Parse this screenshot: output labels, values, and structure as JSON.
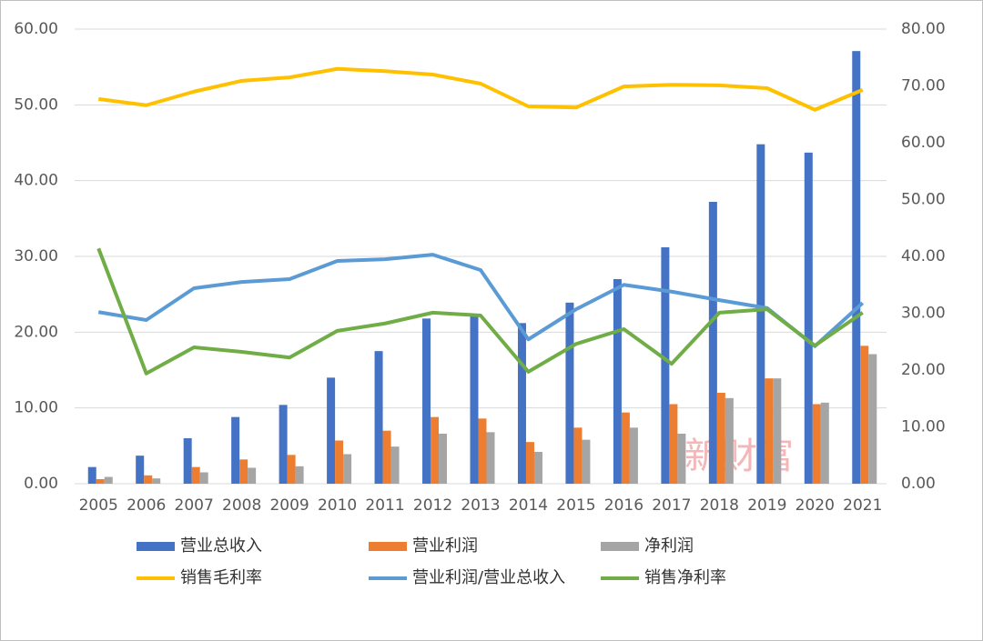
{
  "chart_data": {
    "type": "bar-line",
    "categories": [
      "2005",
      "2006",
      "2007",
      "2008",
      "2009",
      "2010",
      "2011",
      "2012",
      "2013",
      "2014",
      "2015",
      "2016",
      "2017",
      "2018",
      "2019",
      "2020",
      "2021"
    ],
    "series": [
      {
        "name": "营业总收入",
        "type": "bar",
        "color": "#4472c4",
        "values": [
          2.2,
          3.7,
          6.0,
          8.8,
          10.4,
          14.0,
          17.5,
          21.8,
          22.3,
          21.2,
          23.9,
          27.0,
          31.2,
          37.2,
          44.8,
          43.7,
          57.1
        ]
      },
      {
        "name": "营业利润",
        "type": "bar",
        "color": "#ed7d31",
        "values": [
          0.6,
          1.1,
          2.2,
          3.2,
          3.8,
          5.7,
          7.0,
          8.8,
          8.6,
          5.5,
          7.4,
          9.4,
          10.5,
          12.0,
          13.9,
          10.5,
          18.2
        ]
      },
      {
        "name": "净利润",
        "type": "bar",
        "color": "#a5a5a5",
        "values": [
          0.9,
          0.7,
          1.5,
          2.1,
          2.3,
          3.9,
          4.9,
          6.6,
          6.8,
          4.2,
          5.8,
          7.4,
          6.6,
          11.3,
          13.9,
          10.7,
          17.1
        ]
      },
      {
        "name": "销售毛利率",
        "type": "line",
        "axis": "y2",
        "color": "#ffc000",
        "values": [
          67.7,
          66.6,
          69.0,
          70.9,
          71.5,
          73.0,
          72.6,
          72.0,
          70.4,
          66.4,
          66.2,
          69.9,
          70.2,
          70.1,
          69.6,
          65.8,
          69.3
        ]
      },
      {
        "name": "营业利润/营业总收入",
        "type": "line",
        "axis": "y2",
        "color": "#5b9bd5",
        "values": [
          30.2,
          28.8,
          34.4,
          35.5,
          36.0,
          39.2,
          39.5,
          40.3,
          37.6,
          25.4,
          30.7,
          35.0,
          33.8,
          32.3,
          30.9,
          24.2,
          31.8
        ]
      },
      {
        "name": "销售净利率",
        "type": "line",
        "axis": "y2",
        "color": "#70ad47",
        "values": [
          41.4,
          19.4,
          24.0,
          23.2,
          22.2,
          26.9,
          28.2,
          30.1,
          29.6,
          19.7,
          24.6,
          27.2,
          21.1,
          30.1,
          30.7,
          24.3,
          30.1
        ]
      }
    ],
    "ylim": [
      0,
      60
    ],
    "yticks": [
      {
        "value": 0,
        "label": "0.00"
      },
      {
        "value": 10,
        "label": "10.00"
      },
      {
        "value": 20,
        "label": "20.00"
      },
      {
        "value": 30,
        "label": "30.00"
      },
      {
        "value": 40,
        "label": "40.00"
      },
      {
        "value": 50,
        "label": "50.00"
      },
      {
        "value": 60,
        "label": "60.00"
      }
    ],
    "y2lim": [
      0,
      80
    ],
    "y2ticks": [
      {
        "value": 0,
        "label": "0.00"
      },
      {
        "value": 10,
        "label": "10.00"
      },
      {
        "value": 20,
        "label": "20.00"
      },
      {
        "value": 30,
        "label": "30.00"
      },
      {
        "value": 40,
        "label": "40.00"
      },
      {
        "value": 50,
        "label": "50.00"
      },
      {
        "value": 60,
        "label": "60.00"
      },
      {
        "value": 70,
        "label": "70.00"
      },
      {
        "value": 80,
        "label": "80.00"
      }
    ],
    "grid": true,
    "watermark": "新财富"
  }
}
